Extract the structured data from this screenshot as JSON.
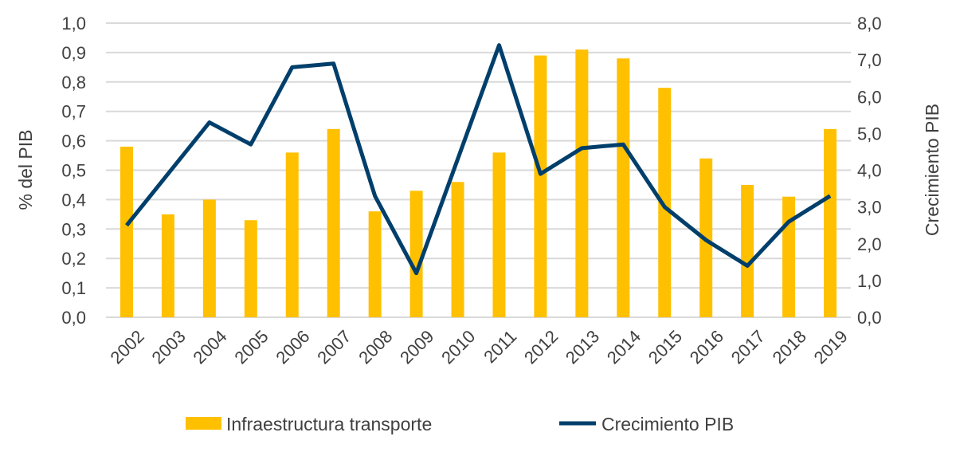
{
  "chart_data": {
    "type": "bar+line",
    "categories": [
      "2002",
      "2003",
      "2004",
      "2005",
      "2006",
      "2007",
      "2008",
      "2009",
      "2010",
      "2011",
      "2012",
      "2013",
      "2014",
      "2015",
      "2016",
      "2017",
      "2018",
      "2019"
    ],
    "series": [
      {
        "name": "Infraestructura transporte",
        "type": "bar",
        "axis": "left",
        "color": "#FFC000",
        "values": [
          0.58,
          0.35,
          0.4,
          0.33,
          0.56,
          0.64,
          0.36,
          0.43,
          0.46,
          0.56,
          0.89,
          0.91,
          0.88,
          0.78,
          0.54,
          0.45,
          0.41,
          0.64
        ]
      },
      {
        "name": "Crecimiento PIB",
        "type": "line",
        "axis": "right",
        "color": "#003F6B",
        "values": [
          2.5,
          3.9,
          5.3,
          4.7,
          6.8,
          6.9,
          3.3,
          1.2,
          4.3,
          7.4,
          3.9,
          4.6,
          4.7,
          3.0,
          2.1,
          1.4,
          2.6,
          3.3
        ]
      }
    ],
    "ylabel": "% del PIB",
    "y2label": "Crecimiento PIB",
    "ylim": [
      0,
      1.0
    ],
    "y2lim": [
      0,
      8.0
    ],
    "yticks": [
      "0,0",
      "0,1",
      "0,2",
      "0,3",
      "0,4",
      "0,5",
      "0,6",
      "0,7",
      "0,8",
      "0,9",
      "1,0"
    ],
    "y2ticks": [
      "0,0",
      "1,0",
      "2,0",
      "3,0",
      "4,0",
      "5,0",
      "6,0",
      "7,0",
      "8,0"
    ],
    "grid": true,
    "legend": "bottom"
  }
}
